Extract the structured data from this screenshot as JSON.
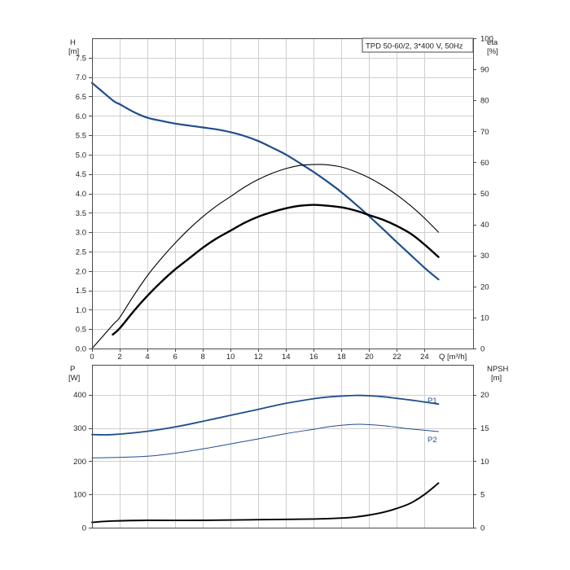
{
  "chart_data": [
    {
      "type": "line",
      "title": "TPD 50-60/2, 3*400 V, 50Hz",
      "left_axis": {
        "label": "H",
        "unit": "[m]",
        "range": [
          0,
          8
        ],
        "ticks": [
          "0.0",
          "0.5",
          "1.0",
          "1.5",
          "2.0",
          "2.5",
          "3.0",
          "3.5",
          "4.0",
          "4.5",
          "5.0",
          "5.5",
          "6.0",
          "6.5",
          "7.0",
          "7.5"
        ]
      },
      "right_axis": {
        "label": "eta",
        "unit": "[%]",
        "range": [
          0,
          100
        ],
        "ticks": [
          "0",
          "10",
          "20",
          "30",
          "40",
          "50",
          "60",
          "70",
          "80",
          "90",
          "100"
        ]
      },
      "x_axis": {
        "label": "Q [m³/h]",
        "range": [
          0,
          27.5
        ],
        "ticks": [
          "0",
          "2",
          "4",
          "6",
          "8",
          "10",
          "12",
          "14",
          "16",
          "18",
          "20",
          "22",
          "24"
        ]
      },
      "grid": true,
      "series": [
        {
          "axis": "left",
          "color": "#1f4e8c",
          "width": 2.2,
          "x": [
            0,
            1.5,
            2,
            3,
            4,
            5,
            6,
            7,
            8,
            9,
            10,
            11,
            12,
            13,
            14,
            15,
            16,
            17,
            18,
            19,
            20,
            21,
            22,
            23,
            24,
            25
          ],
          "y": [
            6.85,
            6.4,
            6.3,
            6.1,
            5.95,
            5.87,
            5.8,
            5.75,
            5.7,
            5.65,
            5.58,
            5.48,
            5.35,
            5.18,
            5,
            4.78,
            4.55,
            4.3,
            4.03,
            3.73,
            3.41,
            3.08,
            2.74,
            2.41,
            2.08,
            1.78
          ]
        },
        {
          "axis": "right",
          "color": "#000000",
          "width": 1.1,
          "x": [
            0,
            1.5,
            2,
            3,
            4,
            5,
            6,
            7,
            8,
            9,
            10,
            11,
            12,
            13,
            14,
            15,
            16,
            17,
            18,
            19,
            20,
            21,
            22,
            23,
            24,
            25
          ],
          "y": [
            0,
            7.6,
            10,
            17,
            23.5,
            29,
            34,
            38.5,
            42.5,
            46,
            49,
            52,
            54.5,
            56.5,
            58,
            59,
            59.3,
            59.2,
            58.5,
            57,
            55,
            52.5,
            49.5,
            46,
            42,
            37.5
          ]
        },
        {
          "axis": "right",
          "color": "#000000",
          "width": 2.4,
          "x": [
            1.5,
            2,
            3,
            4,
            5,
            6,
            7,
            8,
            9,
            10,
            11,
            12,
            13,
            14,
            15,
            16,
            17,
            18,
            19,
            20,
            21,
            22,
            23,
            24,
            25
          ],
          "y": [
            4.5,
            6.5,
            12,
            17,
            21.5,
            25.5,
            29,
            32.5,
            35.5,
            38,
            40.5,
            42.5,
            44,
            45.2,
            46,
            46.3,
            46,
            45.5,
            44.5,
            43,
            41.5,
            39.5,
            37,
            33.5,
            29.5
          ]
        }
      ]
    },
    {
      "type": "line",
      "left_axis": {
        "label": "P",
        "unit": "[W]",
        "range": [
          0,
          490
        ],
        "ticks": [
          "0",
          "100",
          "200",
          "300",
          "400"
        ]
      },
      "right_axis": {
        "label": "NPSH",
        "unit": "[m]",
        "range": [
          0,
          24.5
        ],
        "ticks": [
          "0",
          "5",
          "10",
          "15",
          "20"
        ]
      },
      "x_axis": {
        "range": [
          0,
          27.5
        ]
      },
      "grid": true,
      "series": [
        {
          "name": "P1",
          "axis": "left",
          "color": "#1f4e8c",
          "width": 1.8,
          "x": [
            0,
            1.5,
            4,
            6,
            8,
            10,
            12,
            14,
            16,
            17,
            18,
            19,
            20,
            21,
            22,
            23,
            24,
            25
          ],
          "y": [
            280,
            280,
            290,
            303,
            320,
            338,
            356,
            374,
            388,
            393,
            396,
            398,
            397,
            394,
            389,
            384,
            378,
            372
          ]
        },
        {
          "name": "P2",
          "axis": "left",
          "color": "#1f4e8c",
          "width": 1.0,
          "x": [
            0,
            1.5,
            4,
            6,
            8,
            10,
            12,
            14,
            16,
            17,
            18,
            19,
            20,
            21,
            22,
            23,
            24,
            25
          ],
          "y": [
            210,
            211,
            215,
            224,
            237,
            252,
            267,
            283,
            296,
            303,
            308,
            311,
            310,
            307,
            302,
            297,
            293,
            289
          ]
        },
        {
          "axis": "right",
          "color": "#000000",
          "width": 1.9,
          "x": [
            0,
            1.5,
            4,
            8,
            12,
            16,
            18,
            19,
            20,
            21,
            22,
            23,
            24,
            25
          ],
          "y": [
            0.8,
            1,
            1.1,
            1.1,
            1.2,
            1.3,
            1.45,
            1.6,
            1.9,
            2.3,
            2.9,
            3.7,
            5,
            6.7
          ]
        }
      ]
    }
  ]
}
